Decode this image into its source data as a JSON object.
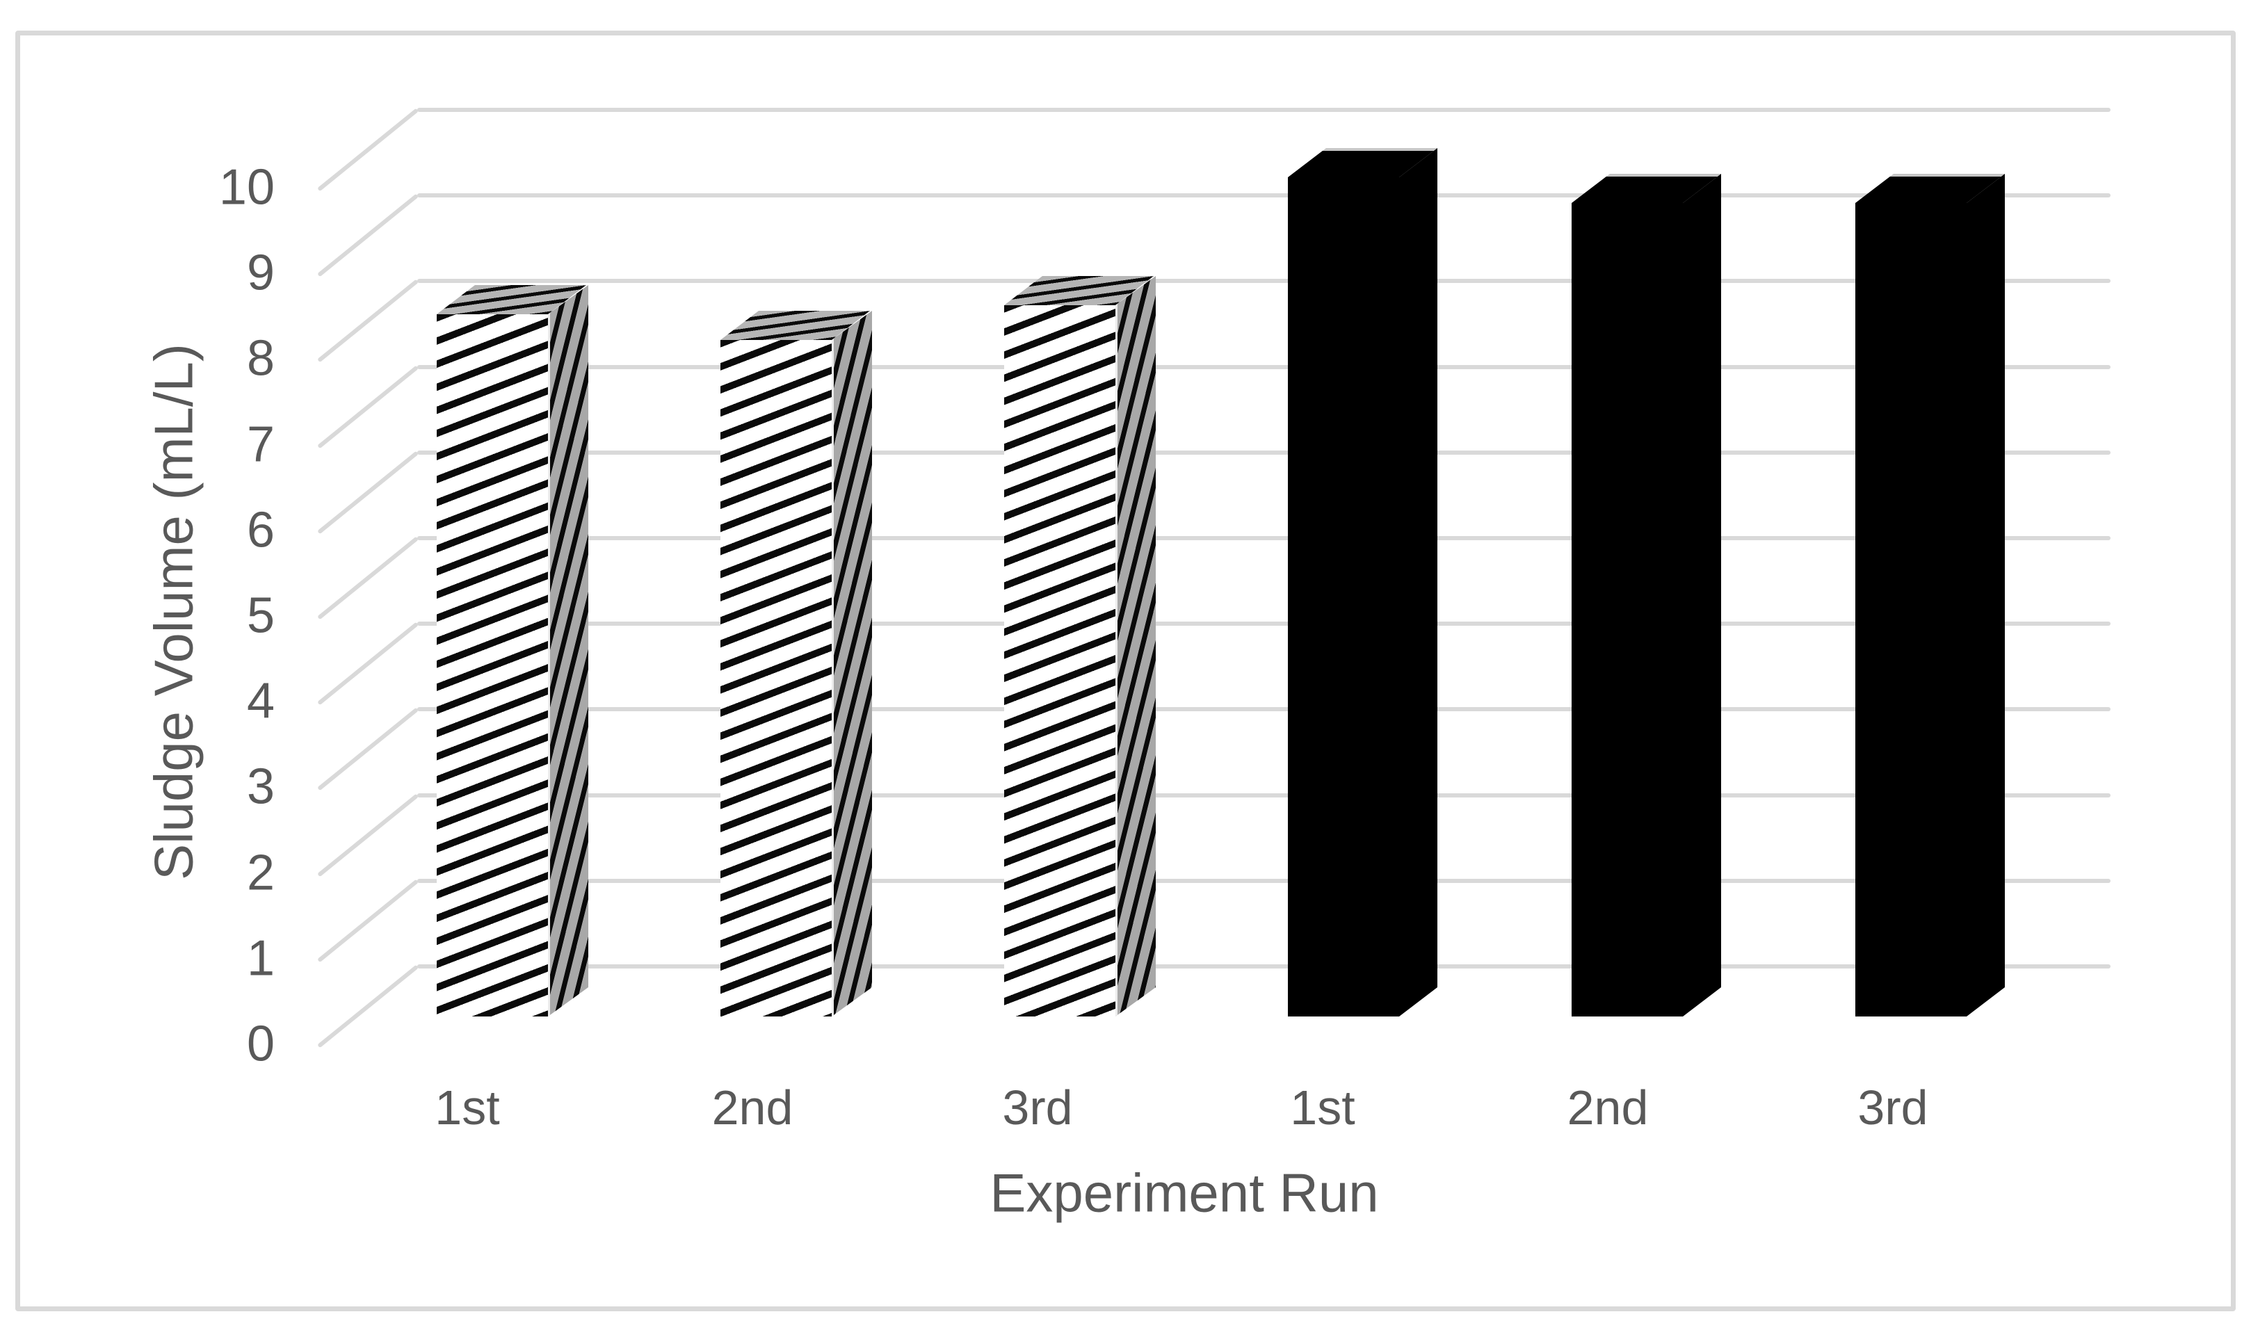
{
  "chart_data": {
    "type": "bar",
    "style": "3d-column",
    "title": "",
    "xlabel": "Experiment Run",
    "ylabel": "Sludge Volume (mL/L)",
    "categories": [
      "1st",
      "2nd",
      "3rd",
      "1st",
      "2nd",
      "3rd"
    ],
    "series": [
      {
        "name": "diagonal-hatch",
        "pattern": "striped",
        "values": [
          8.2,
          7.9,
          8.3
        ]
      },
      {
        "name": "solid-black",
        "pattern": "solid",
        "values": [
          9.8,
          9.5,
          9.5
        ]
      }
    ],
    "ylim": [
      0,
      10
    ],
    "yticks": [
      0,
      1,
      2,
      3,
      4,
      5,
      6,
      7,
      8,
      9,
      10
    ],
    "grid": true,
    "legend": false,
    "colors": {
      "text": "#595959",
      "gridline": "#d9d9d9",
      "bar_solid": "#000000",
      "hatch_foreground": "#0a0a0a",
      "hatch_background": "#ffffff",
      "frame_border": "#d9d9d9"
    }
  }
}
